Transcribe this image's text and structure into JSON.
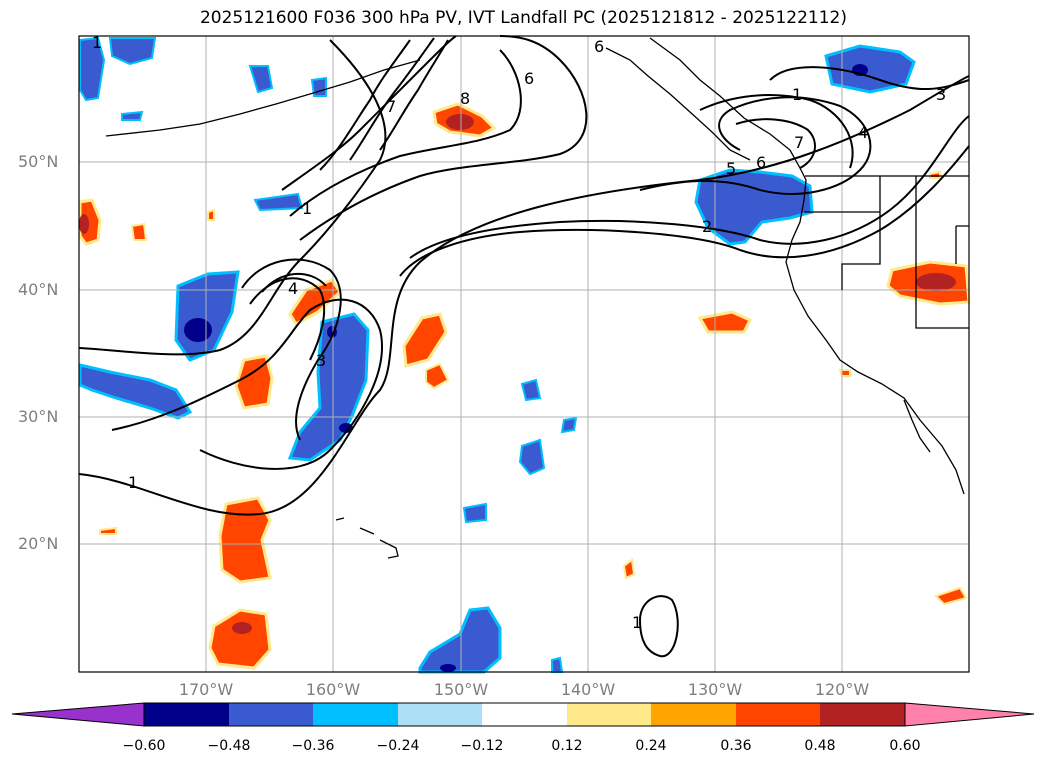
{
  "title": "2025121600 F036 300 hPa PV, IVT Landfall PC (2025121812 - 2025122112)",
  "map": {
    "lon_range": [
      -180,
      -110
    ],
    "lat_range": [
      10,
      60
    ],
    "lat_ticks": [
      "20°N",
      "30°N",
      "40°N",
      "50°N"
    ],
    "lon_ticks": [
      "170°W",
      "160°W",
      "150°W",
      "140°W",
      "130°W",
      "120°W"
    ],
    "contour_labels": [
      "1",
      "1",
      "1",
      "4",
      "3",
      "1",
      "7",
      "8",
      "6",
      "6",
      "3",
      "4",
      "5",
      "2",
      "7",
      "6",
      "1"
    ]
  },
  "colorbar": {
    "tick_labels": [
      "−0.60",
      "−0.48",
      "−0.36",
      "−0.24",
      "−0.12",
      "0.12",
      "0.24",
      "0.36",
      "0.48",
      "0.60"
    ],
    "colors": [
      "#9932CC",
      "#00008B",
      "#3A5BCF",
      "#00BFFF",
      "#ADDFF7",
      "#FFFFFF",
      "#FFE98A",
      "#FFA500",
      "#FF4500",
      "#B22222",
      "#FF80AB"
    ],
    "extend": "both"
  }
}
